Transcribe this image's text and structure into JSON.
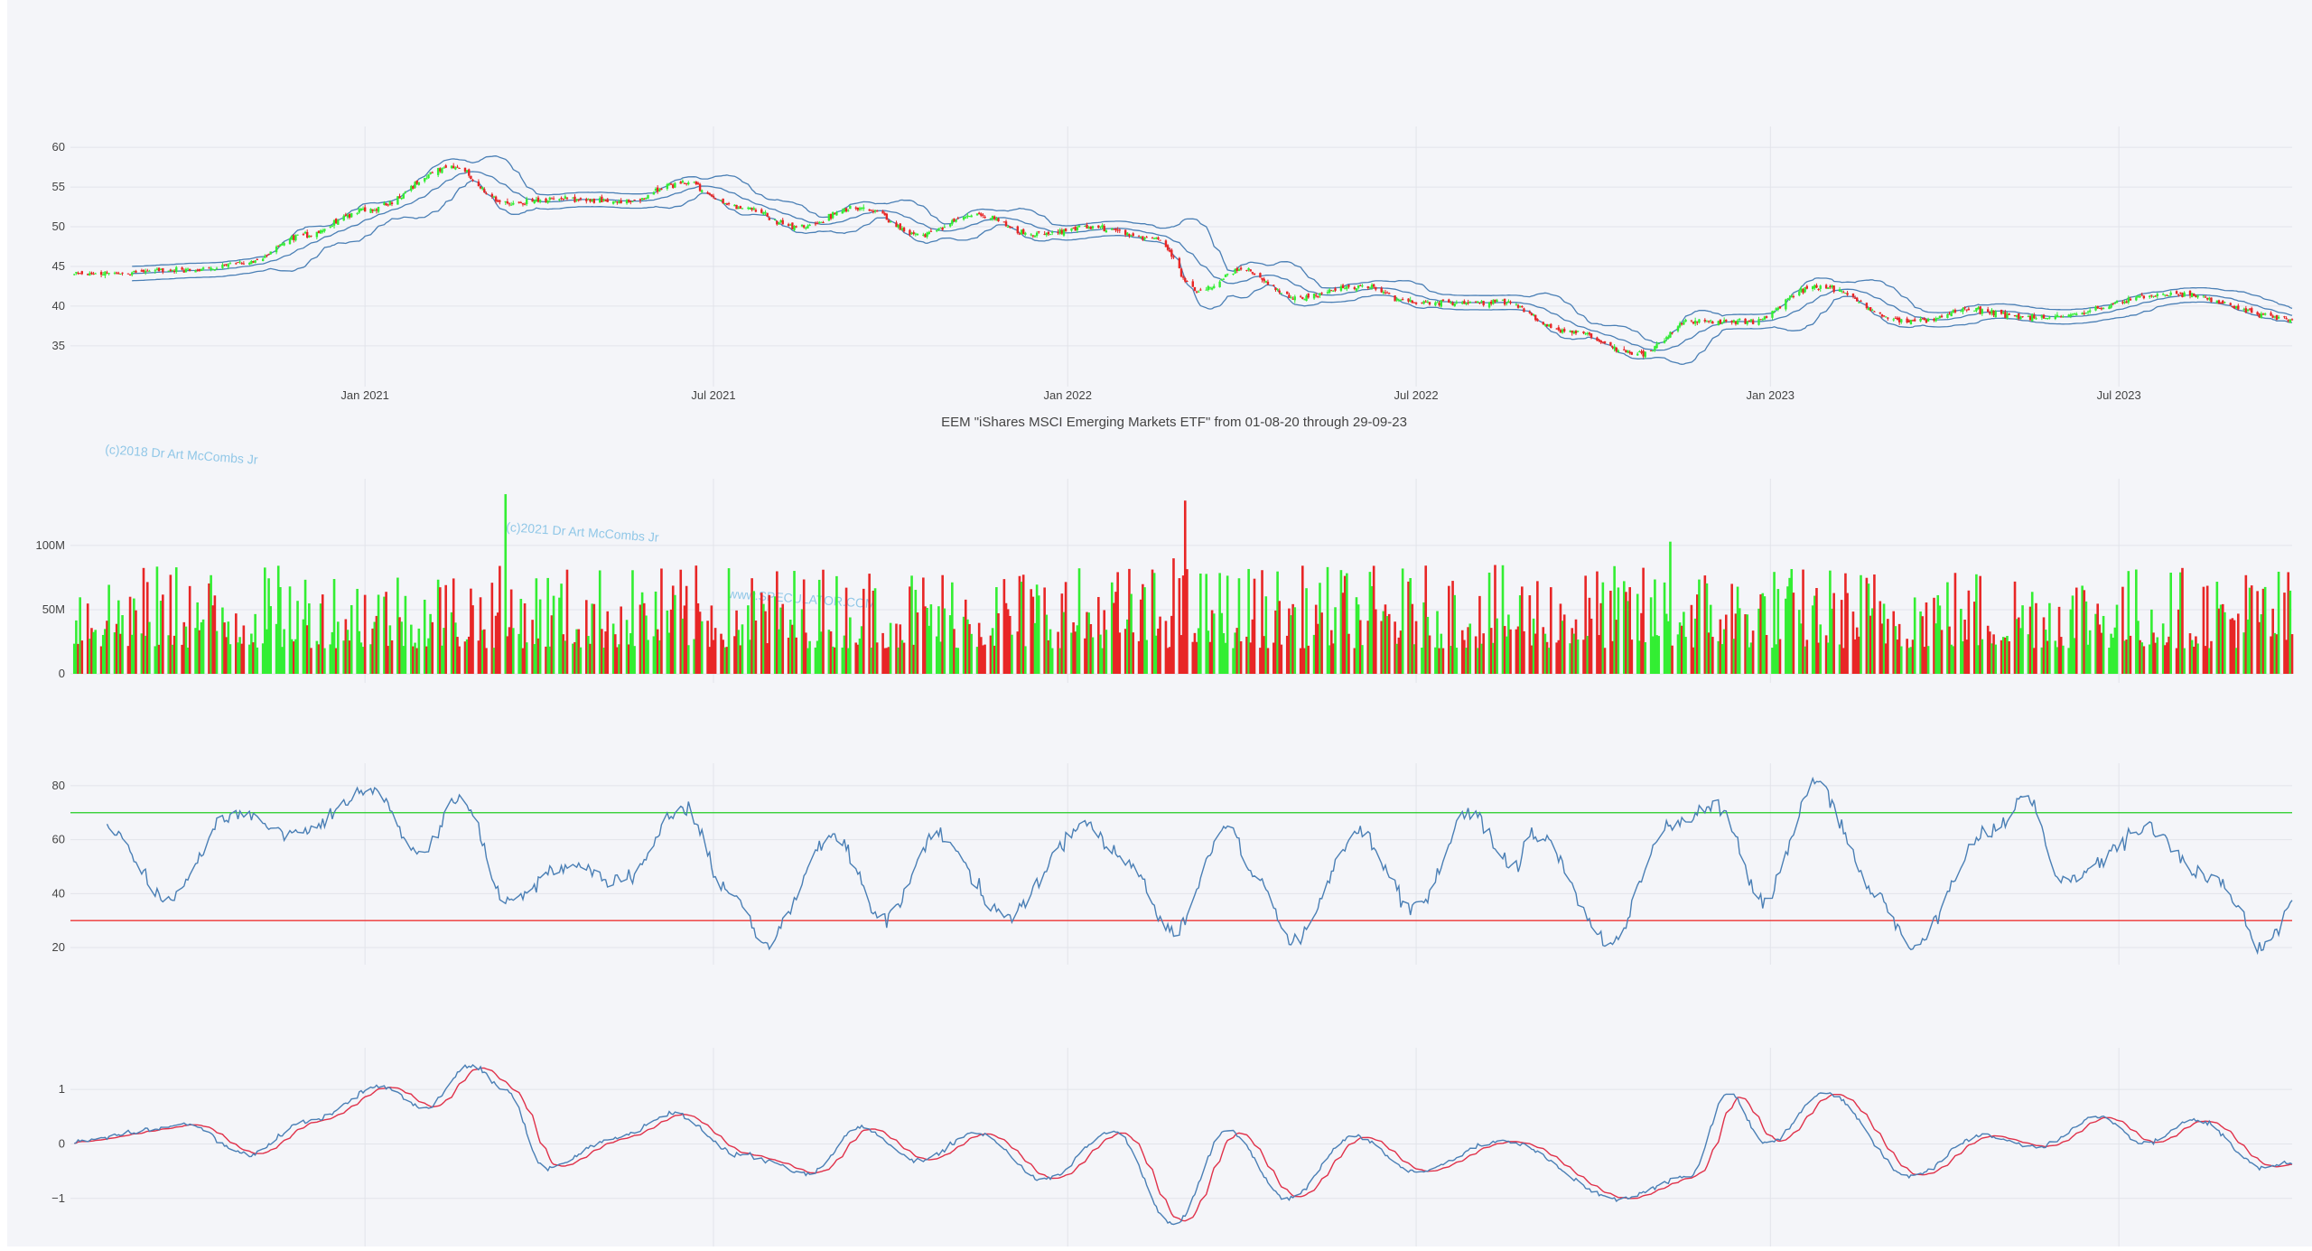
{
  "title": "EEM \"iShares MSCI Emerging Markets ETF\" from 01-08-20 through 29-09-23",
  "watermarks": [
    "(c)2018 Dr Art McCombs Jr",
    "(c)2021 Dr Art McCombs Jr",
    "www.SPECULATOR.COM"
  ],
  "colors": {
    "up": "#33ee33",
    "down": "#e82626",
    "line": "#4a7fb5",
    "signal": "#e0314a",
    "overbought": "#22cc22",
    "oversold": "#ee3333",
    "grid": "#e2e4ea",
    "background": "#f4f5f9"
  },
  "chart_data": [
    {
      "type": "candlestick",
      "name": "price",
      "title": "EEM \"iShares MSCI Emerging Markets ETF\" from 01-08-20 through 29-09-23",
      "x_range": [
        "2020-08-01",
        "2023-09-29"
      ],
      "x_tick_labels": [
        "Jan 2021",
        "Jul 2021",
        "Jan 2022",
        "Jul 2022",
        "Jan 2023",
        "Jul 2023"
      ],
      "y_ticks": [
        35,
        40,
        45,
        50,
        55,
        60
      ],
      "ylim": [
        31,
        61.5
      ],
      "overlay": "Bollinger Bands",
      "anchors": [
        {
          "date": "2020-08-01",
          "close": 44.0
        },
        {
          "date": "2020-10-01",
          "close": 44.5
        },
        {
          "date": "2020-11-01",
          "close": 45.5
        },
        {
          "date": "2020-12-01",
          "close": 49.0
        },
        {
          "date": "2021-01-01",
          "close": 52.0
        },
        {
          "date": "2021-02-15",
          "close": 57.5
        },
        {
          "date": "2021-03-15",
          "close": 53.0
        },
        {
          "date": "2021-04-15",
          "close": 53.5
        },
        {
          "date": "2021-05-15",
          "close": 53.0
        },
        {
          "date": "2021-06-15",
          "close": 55.5
        },
        {
          "date": "2021-07-15",
          "close": 52.5
        },
        {
          "date": "2021-08-15",
          "close": 50.0
        },
        {
          "date": "2021-09-15",
          "close": 52.5
        },
        {
          "date": "2021-10-15",
          "close": 49.0
        },
        {
          "date": "2021-11-15",
          "close": 51.5
        },
        {
          "date": "2021-12-15",
          "close": 49.0
        },
        {
          "date": "2022-01-15",
          "close": 50.0
        },
        {
          "date": "2022-02-15",
          "close": 48.5
        },
        {
          "date": "2022-03-10",
          "close": 42.0
        },
        {
          "date": "2022-04-01",
          "close": 44.5
        },
        {
          "date": "2022-05-01",
          "close": 41.0
        },
        {
          "date": "2022-06-01",
          "close": 42.5
        },
        {
          "date": "2022-07-01",
          "close": 40.5
        },
        {
          "date": "2022-08-15",
          "close": 40.5
        },
        {
          "date": "2022-09-15",
          "close": 37.0
        },
        {
          "date": "2022-10-25",
          "close": 34.0
        },
        {
          "date": "2022-11-20",
          "close": 38.0
        },
        {
          "date": "2022-12-20",
          "close": 38.0
        },
        {
          "date": "2023-01-25",
          "close": 42.5
        },
        {
          "date": "2023-03-15",
          "close": 38.0
        },
        {
          "date": "2023-04-15",
          "close": 39.5
        },
        {
          "date": "2023-05-20",
          "close": 38.5
        },
        {
          "date": "2023-07-30",
          "close": 41.5
        },
        {
          "date": "2023-09-29",
          "close": 38.3
        }
      ]
    },
    {
      "type": "bar",
      "name": "volume",
      "y_ticks": [
        0,
        50000000,
        100000000
      ],
      "y_tick_labels": [
        "0",
        "50M",
        "100M"
      ],
      "ylim": [
        0,
        145000000
      ],
      "typical_range": [
        20000000,
        85000000
      ],
      "spikes": [
        {
          "date": "2021-03-15",
          "value": 140000000
        },
        {
          "date": "2022-03-03",
          "value": 135000000
        },
        {
          "date": "2022-11-10",
          "value": 103000000
        },
        {
          "date": "2022-02-25",
          "value": 90000000
        },
        {
          "date": "2020-09-25",
          "value": 83000000
        }
      ]
    },
    {
      "type": "line",
      "name": "rsi",
      "y_ticks": [
        20,
        40,
        60,
        80
      ],
      "ylim": [
        17,
        85
      ],
      "reference_lines": [
        {
          "y": 70,
          "color": "#22cc22"
        },
        {
          "y": 30,
          "color": "#ee3333"
        }
      ],
      "anchors": [
        {
          "date": "2020-08-20",
          "value": 65
        },
        {
          "date": "2020-09-20",
          "value": 38
        },
        {
          "date": "2020-10-25",
          "value": 70
        },
        {
          "date": "2020-11-25",
          "value": 62
        },
        {
          "date": "2021-01-05",
          "value": 78
        },
        {
          "date": "2021-01-30",
          "value": 55
        },
        {
          "date": "2021-02-20",
          "value": 76
        },
        {
          "date": "2021-03-15",
          "value": 38
        },
        {
          "date": "2021-04-15",
          "value": 50
        },
        {
          "date": "2021-05-15",
          "value": 45
        },
        {
          "date": "2021-06-15",
          "value": 72
        },
        {
          "date": "2021-07-10",
          "value": 40
        },
        {
          "date": "2021-07-28",
          "value": 22
        },
        {
          "date": "2021-09-01",
          "value": 62
        },
        {
          "date": "2021-09-28",
          "value": 30
        },
        {
          "date": "2021-10-25",
          "value": 62
        },
        {
          "date": "2021-11-30",
          "value": 32
        },
        {
          "date": "2022-01-10",
          "value": 65
        },
        {
          "date": "2022-02-01",
          "value": 52
        },
        {
          "date": "2022-02-25",
          "value": 26
        },
        {
          "date": "2022-03-25",
          "value": 65
        },
        {
          "date": "2022-04-10",
          "value": 44
        },
        {
          "date": "2022-04-28",
          "value": 22
        },
        {
          "date": "2022-06-01",
          "value": 63
        },
        {
          "date": "2022-06-30",
          "value": 35
        },
        {
          "date": "2022-07-30",
          "value": 70
        },
        {
          "date": "2022-08-20",
          "value": 50
        },
        {
          "date": "2022-09-01",
          "value": 62
        },
        {
          "date": "2022-10-10",
          "value": 22
        },
        {
          "date": "2022-11-10",
          "value": 66
        },
        {
          "date": "2022-12-05",
          "value": 72
        },
        {
          "date": "2022-12-28",
          "value": 37
        },
        {
          "date": "2023-01-25",
          "value": 81
        },
        {
          "date": "2023-02-25",
          "value": 40
        },
        {
          "date": "2023-03-15",
          "value": 20
        },
        {
          "date": "2023-04-25",
          "value": 63
        },
        {
          "date": "2023-05-15",
          "value": 76
        },
        {
          "date": "2023-06-01",
          "value": 44
        },
        {
          "date": "2023-07-15",
          "value": 63
        },
        {
          "date": "2023-08-20",
          "value": 45
        },
        {
          "date": "2023-09-15",
          "value": 20
        },
        {
          "date": "2023-09-29",
          "value": 36
        }
      ]
    },
    {
      "type": "line",
      "name": "oscillator",
      "y_ticks": [
        -1,
        0,
        1
      ],
      "ylim": [
        -1.8,
        1.6
      ],
      "series": [
        {
          "role": "indicator",
          "color": "#4a7fb5"
        },
        {
          "role": "signal",
          "color": "#e0314a"
        }
      ],
      "anchors": [
        {
          "date": "2020-08-01",
          "value": 0.05
        },
        {
          "date": "2020-10-01",
          "value": 0.35
        },
        {
          "date": "2020-11-01",
          "value": -0.2
        },
        {
          "date": "2020-12-01",
          "value": 0.4
        },
        {
          "date": "2021-01-10",
          "value": 1.05
        },
        {
          "date": "2021-02-01",
          "value": 0.65
        },
        {
          "date": "2021-02-25",
          "value": 1.45
        },
        {
          "date": "2021-03-15",
          "value": 1.0
        },
        {
          "date": "2021-04-05",
          "value": -0.45
        },
        {
          "date": "2021-05-10",
          "value": 0.1
        },
        {
          "date": "2021-06-10",
          "value": 0.55
        },
        {
          "date": "2021-07-15",
          "value": -0.2
        },
        {
          "date": "2021-08-20",
          "value": -0.55
        },
        {
          "date": "2021-09-15",
          "value": 0.3
        },
        {
          "date": "2021-10-15",
          "value": -0.3
        },
        {
          "date": "2021-11-15",
          "value": 0.2
        },
        {
          "date": "2021-12-20",
          "value": -0.65
        },
        {
          "date": "2022-01-25",
          "value": 0.25
        },
        {
          "date": "2022-02-25",
          "value": -1.5
        },
        {
          "date": "2022-03-25",
          "value": 0.25
        },
        {
          "date": "2022-04-25",
          "value": -1.0
        },
        {
          "date": "2022-05-30",
          "value": 0.15
        },
        {
          "date": "2022-06-30",
          "value": -0.5
        },
        {
          "date": "2022-08-15",
          "value": 0.05
        },
        {
          "date": "2022-10-15",
          "value": -1.0
        },
        {
          "date": "2022-11-20",
          "value": -0.6
        },
        {
          "date": "2022-12-10",
          "value": 0.95
        },
        {
          "date": "2022-12-30",
          "value": 0.0
        },
        {
          "date": "2023-01-30",
          "value": 0.95
        },
        {
          "date": "2023-03-15",
          "value": -0.6
        },
        {
          "date": "2023-04-20",
          "value": 0.15
        },
        {
          "date": "2023-05-20",
          "value": -0.05
        },
        {
          "date": "2023-06-20",
          "value": 0.5
        },
        {
          "date": "2023-07-15",
          "value": 0.0
        },
        {
          "date": "2023-08-10",
          "value": 0.45
        },
        {
          "date": "2023-09-15",
          "value": -0.45
        },
        {
          "date": "2023-09-29",
          "value": -0.35
        }
      ]
    }
  ]
}
